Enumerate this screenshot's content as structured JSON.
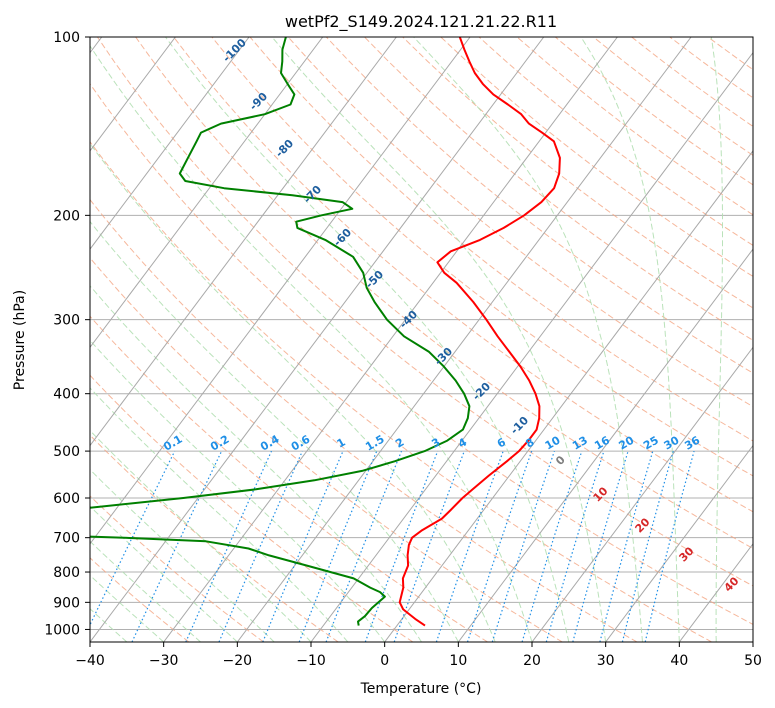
{
  "chart_data": {
    "type": "line",
    "title": "wetPf2_S149.2024.121.21.22.R11",
    "xlabel": "Temperature (°C)",
    "ylabel": "Pressure (hPa)",
    "xlim": [
      -40,
      50
    ],
    "ylim": [
      1050,
      100
    ],
    "y_scale": "log",
    "grid": true,
    "x_ticks": [
      -40,
      -30,
      -20,
      -10,
      0,
      10,
      20,
      30,
      40,
      50
    ],
    "x_tick_labels": [
      "−40",
      "−30",
      "−20",
      "−10",
      "0",
      "10",
      "20",
      "30",
      "40",
      "50"
    ],
    "y_ticks": [
      1000,
      900,
      800,
      700,
      600,
      500,
      400,
      300,
      200,
      100
    ],
    "y_tick_labels": [
      "1000",
      "900",
      "800",
      "700",
      "600",
      "500",
      "400",
      "300",
      "200",
      "100"
    ],
    "series": [
      {
        "color": "#ff0000",
        "kind": "temperature",
        "points": [
          [
            985,
            3.8
          ],
          [
            960,
            1.8
          ],
          [
            925,
            -0.8
          ],
          [
            900,
            -2.0
          ],
          [
            850,
            -3.0
          ],
          [
            820,
            -4.0
          ],
          [
            780,
            -4.6
          ],
          [
            750,
            -5.7
          ],
          [
            720,
            -6.6
          ],
          [
            700,
            -6.9
          ],
          [
            680,
            -6.3
          ],
          [
            650,
            -4.8
          ],
          [
            630,
            -4.5
          ],
          [
            600,
            -4.1
          ],
          [
            580,
            -3.6
          ],
          [
            550,
            -2.8
          ],
          [
            520,
            -1.8
          ],
          [
            500,
            -1.2
          ],
          [
            480,
            -1.0
          ],
          [
            460,
            -1.0
          ],
          [
            440,
            -1.8
          ],
          [
            420,
            -3.0
          ],
          [
            400,
            -4.8
          ],
          [
            380,
            -7.0
          ],
          [
            360,
            -9.6
          ],
          [
            340,
            -12.6
          ],
          [
            320,
            -15.8
          ],
          [
            300,
            -19.0
          ],
          [
            280,
            -22.6
          ],
          [
            260,
            -26.8
          ],
          [
            250,
            -29.5
          ],
          [
            240,
            -31.5
          ],
          [
            230,
            -30.8
          ],
          [
            220,
            -28.0
          ],
          [
            210,
            -26.0
          ],
          [
            200,
            -24.5
          ],
          [
            190,
            -23.5
          ],
          [
            180,
            -23.2
          ],
          [
            170,
            -24.0
          ],
          [
            160,
            -25.5
          ],
          [
            150,
            -28.0
          ],
          [
            145,
            -30.5
          ],
          [
            140,
            -33.2
          ],
          [
            135,
            -35.2
          ],
          [
            130,
            -38.0
          ],
          [
            125,
            -41.0
          ],
          [
            120,
            -43.5
          ],
          [
            115,
            -45.7
          ],
          [
            110,
            -47.6
          ],
          [
            105,
            -49.5
          ],
          [
            100,
            -51.4
          ]
        ]
      },
      {
        "color": "#008000",
        "kind": "dewpoint",
        "points": [
          [
            985,
            -5.2
          ],
          [
            970,
            -5.7
          ],
          [
            950,
            -5.3
          ],
          [
            920,
            -5.2
          ],
          [
            880,
            -4.6
          ],
          [
            865,
            -5.7
          ],
          [
            850,
            -7.5
          ],
          [
            820,
            -10.7
          ],
          [
            780,
            -18.4
          ],
          [
            750,
            -24.5
          ],
          [
            730,
            -28.0
          ],
          [
            710,
            -34.5
          ],
          [
            700,
            -46.0
          ],
          [
            690,
            -62.0
          ],
          [
            680,
            -75.0
          ],
          [
            660,
            -70.0
          ],
          [
            640,
            -62.0
          ],
          [
            620,
            -52.0
          ],
          [
            600,
            -42.0
          ],
          [
            580,
            -33.0
          ],
          [
            560,
            -26.0
          ],
          [
            540,
            -20.5
          ],
          [
            520,
            -17.0
          ],
          [
            500,
            -14.0
          ],
          [
            480,
            -12.0
          ],
          [
            460,
            -11.0
          ],
          [
            440,
            -11.5
          ],
          [
            420,
            -12.5
          ],
          [
            400,
            -14.5
          ],
          [
            380,
            -17.0
          ],
          [
            360,
            -20.0
          ],
          [
            340,
            -23.5
          ],
          [
            320,
            -28.5
          ],
          [
            300,
            -32.5
          ],
          [
            280,
            -36.0
          ],
          [
            265,
            -38.5
          ],
          [
            250,
            -40.5
          ],
          [
            235,
            -43.5
          ],
          [
            220,
            -49.0
          ],
          [
            210,
            -54.0
          ],
          [
            205,
            -54.8
          ],
          [
            200,
            -52.0
          ],
          [
            195,
            -48.5
          ],
          [
            190,
            -50.5
          ],
          [
            185,
            -58.0
          ],
          [
            180,
            -68.0
          ],
          [
            175,
            -74.0
          ],
          [
            170,
            -75.5
          ],
          [
            160,
            -76.0
          ],
          [
            150,
            -76.5
          ],
          [
            145,
            -76.8
          ],
          [
            140,
            -75.0
          ],
          [
            135,
            -70.0
          ],
          [
            130,
            -67.5
          ],
          [
            125,
            -68.0
          ],
          [
            120,
            -70.0
          ],
          [
            115,
            -72.0
          ],
          [
            110,
            -73.0
          ],
          [
            105,
            -74.2
          ],
          [
            100,
            -75.0
          ]
        ]
      }
    ],
    "dry_adiabat_labels": [
      "-100",
      "-90",
      "-80",
      "-70",
      "-60",
      "-50",
      "-40",
      "-30",
      "-20",
      "-10"
    ],
    "mixing_ratio_labels": [
      "0.1",
      "0.2",
      "0.4",
      "0.6",
      "1",
      "1.5",
      "2",
      "3",
      "4",
      "6",
      "8",
      "10",
      "13",
      "16",
      "20",
      "25",
      "30",
      "36"
    ],
    "moist_adiabat_labels": [
      "0",
      "10",
      "20",
      "30",
      "40"
    ],
    "colors": {
      "temperature": "#ff0000",
      "dewpoint": "#008000",
      "isotherm": "#a9a9a9",
      "dry_adiabat": "#f4a582",
      "moist_adiabat": "#b2dfb2",
      "mixing_ratio": "#1f8fe6",
      "dry_adiabat_label": "#1f5f9f",
      "moist_adiabat_label": "#d62728",
      "zero_label": "#7f7f7f"
    }
  }
}
